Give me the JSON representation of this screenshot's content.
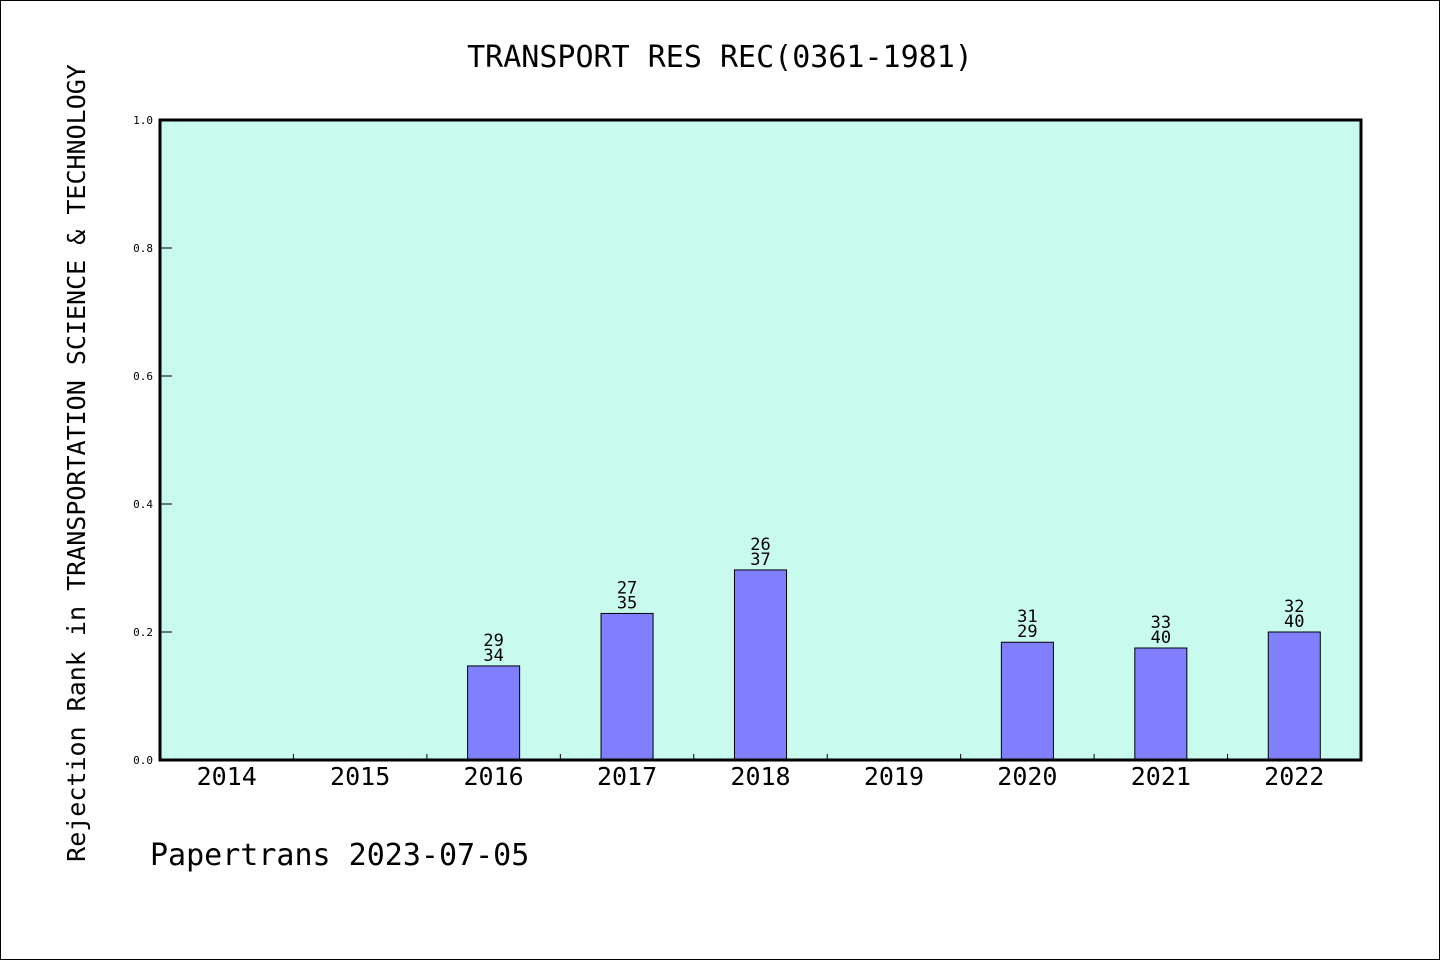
{
  "chart_data": {
    "type": "bar",
    "title": "TRANSPORT RES REC(0361-1981)",
    "xlabel": "",
    "ylabel": "Rejection Rank in TRANSPORTATION SCIENCE & TECHNOLOGY",
    "categories": [
      "2014",
      "2015",
      "2016",
      "2017",
      "2018",
      "2019",
      "2020",
      "2021",
      "2022"
    ],
    "values": [
      0,
      0,
      0.147,
      0.229,
      0.297,
      0,
      0.184,
      0.175,
      0.2
    ],
    "bar_label_top": [
      "",
      "",
      "29",
      "27",
      "26",
      "",
      "31",
      "33",
      "32"
    ],
    "bar_label_bottom": [
      "",
      "",
      "34",
      "35",
      "37",
      "",
      "29",
      "40",
      "40"
    ],
    "ylim": [
      0,
      1.0
    ],
    "yticks": [
      "0.0",
      "0.2",
      "0.4",
      "0.6",
      "0.8",
      "1.0"
    ],
    "grid": false,
    "legend": "none",
    "colors": {
      "plot_background": "#c8fbee",
      "bar_fill": "#8080ff",
      "axis": "#000000"
    }
  },
  "footer": {
    "text": "Papertrans 2023-07-05"
  }
}
